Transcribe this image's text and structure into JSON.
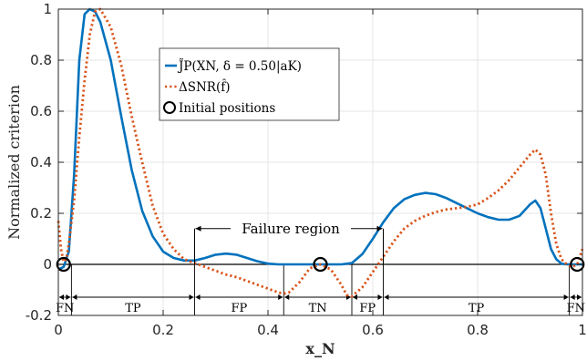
{
  "chart_data": {
    "type": "line",
    "xlabel": "x_N",
    "ylabel": "Normalized criterion",
    "xlim": [
      0,
      1
    ],
    "ylim": [
      -0.2,
      1
    ],
    "xticks": [
      "0",
      "0.2",
      "0.4",
      "0.6",
      "0.8",
      "1"
    ],
    "yticks": [
      "-0.2",
      "0",
      "0.2",
      "0.4",
      "0.6",
      "0.8",
      "1"
    ],
    "grid": true,
    "legend_position": "upper-middle",
    "series": [
      {
        "name": "J̃P(XN, δ = 0.50|aK)",
        "style": "solid",
        "color": "#0072BD",
        "x": [
          0.0,
          0.01,
          0.02,
          0.03,
          0.04,
          0.05,
          0.06,
          0.07,
          0.08,
          0.1,
          0.12,
          0.14,
          0.16,
          0.18,
          0.2,
          0.22,
          0.24,
          0.26,
          0.28,
          0.3,
          0.32,
          0.34,
          0.36,
          0.38,
          0.4,
          0.42,
          0.44,
          0.46,
          0.48,
          0.5,
          0.52,
          0.54,
          0.56,
          0.58,
          0.6,
          0.62,
          0.64,
          0.66,
          0.68,
          0.7,
          0.72,
          0.74,
          0.76,
          0.78,
          0.8,
          0.82,
          0.84,
          0.86,
          0.88,
          0.9,
          0.91,
          0.92,
          0.93,
          0.94,
          0.95,
          0.96,
          0.97,
          0.98,
          1.0
        ],
        "y": [
          -0.02,
          -0.01,
          0.05,
          0.35,
          0.8,
          0.98,
          1.0,
          0.99,
          0.95,
          0.8,
          0.58,
          0.37,
          0.21,
          0.11,
          0.05,
          0.025,
          0.015,
          0.015,
          0.025,
          0.038,
          0.042,
          0.038,
          0.025,
          0.012,
          0.003,
          0.0,
          0.0,
          0.0,
          0.0,
          0.0,
          0.0,
          0.0,
          0.005,
          0.04,
          0.1,
          0.165,
          0.22,
          0.255,
          0.272,
          0.28,
          0.275,
          0.26,
          0.24,
          0.22,
          0.2,
          0.185,
          0.175,
          0.175,
          0.19,
          0.235,
          0.25,
          0.22,
          0.14,
          0.06,
          0.02,
          0.003,
          0.0,
          0.0,
          0.0
        ]
      },
      {
        "name": "ΔSNR(f̂)",
        "style": "dotted",
        "color": "#D95319",
        "x": [
          0.0,
          0.005,
          0.01,
          0.015,
          0.02,
          0.03,
          0.04,
          0.05,
          0.06,
          0.07,
          0.08,
          0.1,
          0.12,
          0.14,
          0.16,
          0.18,
          0.2,
          0.22,
          0.24,
          0.26,
          0.28,
          0.3,
          0.32,
          0.34,
          0.36,
          0.38,
          0.4,
          0.42,
          0.43,
          0.44,
          0.46,
          0.48,
          0.5,
          0.52,
          0.54,
          0.55,
          0.56,
          0.58,
          0.6,
          0.62,
          0.64,
          0.66,
          0.68,
          0.7,
          0.72,
          0.74,
          0.76,
          0.78,
          0.8,
          0.82,
          0.84,
          0.86,
          0.88,
          0.9,
          0.91,
          0.92,
          0.93,
          0.94,
          0.95,
          0.96,
          0.97,
          0.98,
          0.99,
          1.0
        ],
        "y": [
          0.17,
          0.06,
          0.01,
          0.02,
          0.08,
          0.25,
          0.5,
          0.72,
          0.9,
          0.99,
          1.0,
          0.93,
          0.78,
          0.58,
          0.4,
          0.23,
          0.12,
          0.06,
          0.02,
          0.005,
          -0.01,
          -0.025,
          -0.04,
          -0.05,
          -0.065,
          -0.08,
          -0.095,
          -0.11,
          -0.115,
          -0.11,
          -0.07,
          -0.015,
          0.0,
          -0.02,
          -0.08,
          -0.12,
          -0.125,
          -0.09,
          -0.03,
          0.03,
          0.09,
          0.14,
          0.17,
          0.19,
          0.205,
          0.215,
          0.22,
          0.225,
          0.235,
          0.26,
          0.29,
          0.33,
          0.38,
          0.43,
          0.45,
          0.43,
          0.35,
          0.2,
          0.08,
          0.02,
          0.0,
          -0.01,
          0.0,
          0.06
        ]
      }
    ],
    "initial_positions": {
      "name": "Initial positions",
      "x": [
        0.01,
        0.5,
        0.99
      ],
      "y": [
        0,
        0,
        0
      ]
    },
    "annotation": {
      "text": "Failure region",
      "x_start": 0.26,
      "x_end": 0.62,
      "y": 0.14
    },
    "regions": [
      {
        "label": "FN",
        "x_start": 0.0,
        "x_end": 0.025
      },
      {
        "label": "TP",
        "x_start": 0.025,
        "x_end": 0.26
      },
      {
        "label": "FP",
        "x_start": 0.26,
        "x_end": 0.43
      },
      {
        "label": "TN",
        "x_start": 0.43,
        "x_end": 0.56
      },
      {
        "label": "FP",
        "x_start": 0.56,
        "x_end": 0.62
      },
      {
        "label": "TP",
        "x_start": 0.62,
        "x_end": 0.975
      },
      {
        "label": "FN",
        "x_start": 0.975,
        "x_end": 1.0
      }
    ]
  }
}
